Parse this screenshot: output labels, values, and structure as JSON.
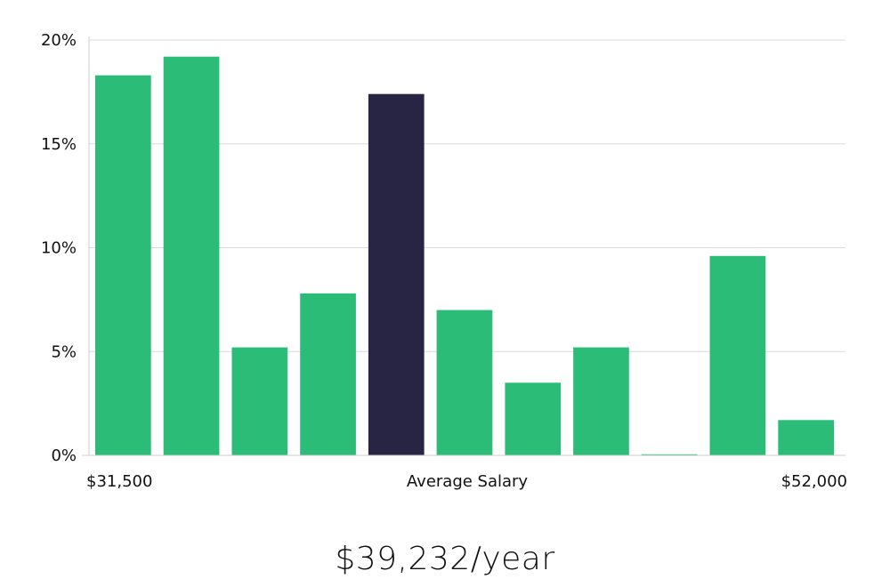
{
  "chart_data": {
    "type": "bar",
    "title": "",
    "xlabel": "Average Salary",
    "ylabel": "",
    "ylim": [
      0,
      20
    ],
    "y_ticks": [
      0,
      5,
      10,
      15,
      20
    ],
    "y_tick_labels": [
      "0%",
      "5%",
      "10%",
      "15%",
      "20%"
    ],
    "x_range_labels": {
      "min": "$31,500",
      "max": "$52,000"
    },
    "values": [
      18.3,
      19.2,
      5.2,
      7.8,
      17.4,
      7.0,
      3.5,
      5.2,
      0.05,
      9.6,
      1.7
    ],
    "highlight_index": 4,
    "grid": true,
    "colors": {
      "bar": "#2bbd77",
      "highlight": "#272444",
      "grid": "#d9d9d9"
    }
  },
  "summary": {
    "salary_text": "$39,232/year"
  }
}
